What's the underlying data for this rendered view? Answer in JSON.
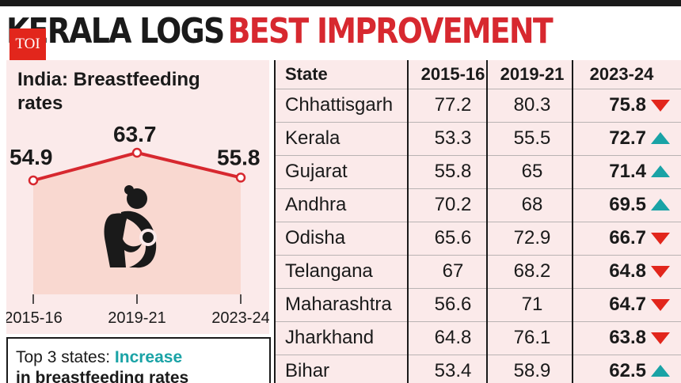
{
  "headline": {
    "part1": "KERALA LOGS",
    "part2": "BEST IMPROVEMENT"
  },
  "logo": {
    "text": "TOI"
  },
  "colors": {
    "accent_red": "#d7282f",
    "teal": "#1aa3a6",
    "panel_pink": "#fbeaea",
    "logo_red": "#e2261c"
  },
  "panel": {
    "title": "India: Breastfeeding rates",
    "icon": "mother-breastfeeding-icon"
  },
  "chart_data": {
    "type": "line",
    "title": "India: Breastfeeding rates",
    "categories": [
      "2015-16",
      "2019-21",
      "2023-24"
    ],
    "series": [
      {
        "values": [
          54.9,
          63.7,
          55.8
        ]
      }
    ],
    "value_labels": [
      "54.9",
      "63.7",
      "55.8"
    ],
    "ylim": [
      0,
      70
    ],
    "grid": false,
    "color": "#d7282f"
  },
  "top3": {
    "prefix": "Top 3 states: ",
    "highlight": "Increase",
    "line2": "in breastfeeding rates"
  },
  "table": {
    "headers": {
      "state": "State",
      "y1": "2015-16",
      "y2": "2019-21",
      "y3": "2023-24"
    },
    "rows": [
      {
        "state": "Chhattisgarh",
        "y1": "77.2",
        "y2": "80.3",
        "y3": "75.8",
        "trend": "down"
      },
      {
        "state": "Kerala",
        "y1": "53.3",
        "y2": "55.5",
        "y3": "72.7",
        "trend": "up"
      },
      {
        "state": "Gujarat",
        "y1": "55.8",
        "y2": "65",
        "y3": "71.4",
        "trend": "up"
      },
      {
        "state": "Andhra",
        "y1": "70.2",
        "y2": "68",
        "y3": "69.5",
        "trend": "up"
      },
      {
        "state": "Odisha",
        "y1": "65.6",
        "y2": "72.9",
        "y3": "66.7",
        "trend": "down"
      },
      {
        "state": "Telangana",
        "y1": "67",
        "y2": "68.2",
        "y3": "64.8",
        "trend": "down"
      },
      {
        "state": "Maharashtra",
        "y1": "56.6",
        "y2": "71",
        "y3": "64.7",
        "trend": "down"
      },
      {
        "state": "Jharkhand",
        "y1": "64.8",
        "y2": "76.1",
        "y3": "63.8",
        "trend": "down"
      },
      {
        "state": "Bihar",
        "y1": "53.4",
        "y2": "58.9",
        "y3": "62.5",
        "trend": "up"
      }
    ]
  }
}
